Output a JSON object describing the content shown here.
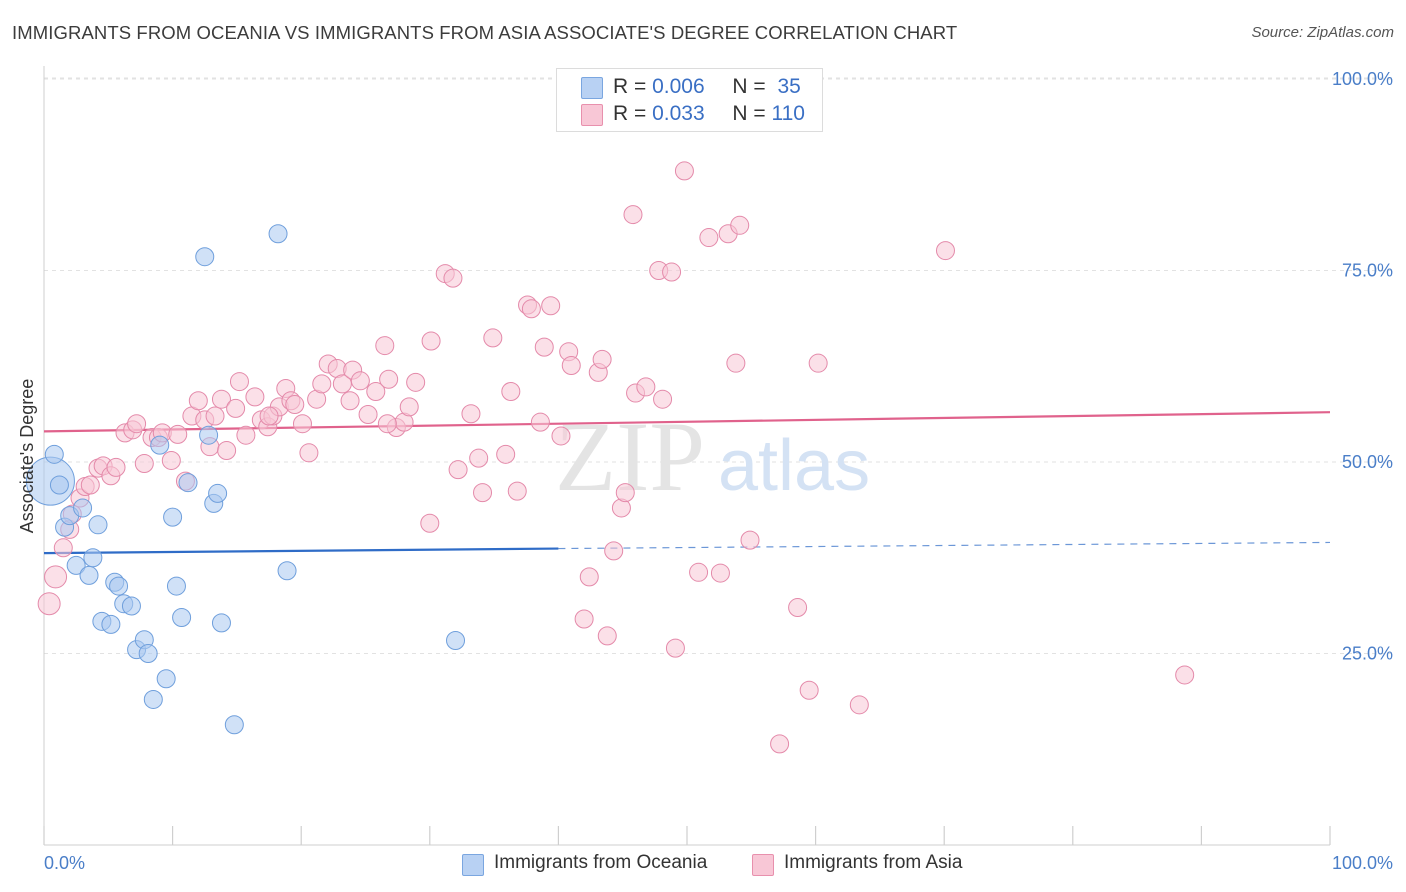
{
  "title": "IMMIGRANTS FROM OCEANIA VS IMMIGRANTS FROM ASIA ASSOCIATE'S DEGREE CORRELATION CHART",
  "source": "Source: ZipAtlas.com",
  "watermark": {
    "zip": "ZIP",
    "atlas": "atlas"
  },
  "legend": {
    "rows": [
      {
        "r_label": "R = ",
        "r_value": "0.006",
        "n_label": "N = ",
        "n_value": "35",
        "color": "#b8d1f3",
        "border": "#7aa6e0"
      },
      {
        "r_label": "R = ",
        "r_value": "0.033",
        "n_label": "N = ",
        "n_value": "110",
        "color": "#f8c7d6",
        "border": "#e890ad"
      }
    ]
  },
  "chart_data": {
    "type": "scatter",
    "xlabel": "",
    "ylabel": "Associate's Degree",
    "xlim": [
      0,
      100
    ],
    "ylim": [
      0,
      100
    ],
    "x_tick_labels": [
      "0.0%",
      "100.0%"
    ],
    "y_tick_labels": [
      "100.0%",
      "75.0%",
      "50.0%",
      "25.0%"
    ],
    "y_ticks": [
      100,
      75,
      50,
      25
    ],
    "grid": true,
    "legend_position": "top-center",
    "series": [
      {
        "name": "Immigrants from Oceania",
        "color": "#a9c8f0",
        "edge": "#6f9fdc",
        "trend": {
          "x0": 0,
          "y0": 38.1,
          "x1": 40,
          "y1": 38.7,
          "dashed_to_x": 100,
          "dashed_to_y": 39.5,
          "color": "#2f6cc7"
        },
        "points": [
          [
            0.5,
            47.5
          ],
          [
            0.8,
            51
          ],
          [
            1.2,
            47
          ],
          [
            1.6,
            41.5
          ],
          [
            2,
            43
          ],
          [
            2.5,
            36.5
          ],
          [
            3,
            44
          ],
          [
            3.5,
            35.2
          ],
          [
            3.8,
            37.5
          ],
          [
            4.2,
            41.8
          ],
          [
            4.5,
            29.2
          ],
          [
            5.2,
            28.8
          ],
          [
            5.5,
            34.3
          ],
          [
            5.8,
            33.8
          ],
          [
            6.2,
            31.5
          ],
          [
            6.8,
            31.2
          ],
          [
            7.2,
            25.5
          ],
          [
            7.8,
            26.8
          ],
          [
            8.1,
            25
          ],
          [
            8.5,
            19
          ],
          [
            9,
            52.2
          ],
          [
            9.5,
            21.7
          ],
          [
            10,
            42.8
          ],
          [
            10.3,
            33.8
          ],
          [
            10.7,
            29.7
          ],
          [
            11.2,
            47.3
          ],
          [
            12.5,
            76.8
          ],
          [
            12.8,
            53.5
          ],
          [
            13.2,
            44.6
          ],
          [
            13.5,
            45.9
          ],
          [
            13.8,
            29
          ],
          [
            14.8,
            15.7
          ],
          [
            18.2,
            79.8
          ],
          [
            18.9,
            35.8
          ],
          [
            32,
            26.7
          ]
        ]
      },
      {
        "name": "Immigrants from Asia",
        "color": "#f8c7d6",
        "edge": "#e48aaa",
        "trend": {
          "x0": 0,
          "y0": 54,
          "x1": 100,
          "y1": 56.5,
          "color": "#e0628c"
        },
        "points": [
          [
            0.4,
            31.5
          ],
          [
            0.9,
            35
          ],
          [
            1.5,
            38.8
          ],
          [
            2,
            41.2
          ],
          [
            2.2,
            43.2
          ],
          [
            2.8,
            45.3
          ],
          [
            3.2,
            46.8
          ],
          [
            3.6,
            47
          ],
          [
            4.2,
            49.2
          ],
          [
            4.6,
            49.5
          ],
          [
            5.2,
            48.2
          ],
          [
            5.6,
            49.3
          ],
          [
            6.3,
            53.8
          ],
          [
            6.9,
            54.2
          ],
          [
            7.2,
            55
          ],
          [
            7.8,
            49.8
          ],
          [
            8.4,
            53.2
          ],
          [
            8.9,
            53.2
          ],
          [
            9.2,
            53.8
          ],
          [
            9.9,
            50.2
          ],
          [
            10.4,
            53.6
          ],
          [
            11,
            47.5
          ],
          [
            11.5,
            56
          ],
          [
            12,
            58
          ],
          [
            12.5,
            55.5
          ],
          [
            12.9,
            52
          ],
          [
            13.3,
            56
          ],
          [
            13.8,
            58.2
          ],
          [
            14.2,
            51.5
          ],
          [
            14.9,
            57
          ],
          [
            15.2,
            60.5
          ],
          [
            15.7,
            53.5
          ],
          [
            16.4,
            58.5
          ],
          [
            16.9,
            55.5
          ],
          [
            17.4,
            54.6
          ],
          [
            17.8,
            56
          ],
          [
            18.3,
            57.2
          ],
          [
            18.8,
            59.6
          ],
          [
            19.2,
            58
          ],
          [
            19.5,
            57.5
          ],
          [
            20.1,
            55
          ],
          [
            20.6,
            51.2
          ],
          [
            21.2,
            58.2
          ],
          [
            21.6,
            60.2
          ],
          [
            22.1,
            62.8
          ],
          [
            22.8,
            62.2
          ],
          [
            23.2,
            60.2
          ],
          [
            23.8,
            58
          ],
          [
            24,
            62
          ],
          [
            24.6,
            60.6
          ],
          [
            25.2,
            56.2
          ],
          [
            25.8,
            59.2
          ],
          [
            26.5,
            65.2
          ],
          [
            26.8,
            60.8
          ],
          [
            27.4,
            54.5
          ],
          [
            28,
            55.2
          ],
          [
            28.4,
            57.2
          ],
          [
            28.9,
            60.4
          ],
          [
            30.1,
            65.8
          ],
          [
            31.2,
            74.6
          ],
          [
            31.8,
            74
          ],
          [
            32.2,
            49
          ],
          [
            33.2,
            56.3
          ],
          [
            33.8,
            50.5
          ],
          [
            34.1,
            46
          ],
          [
            34.9,
            66.2
          ],
          [
            35.9,
            51
          ],
          [
            36.3,
            59.2
          ],
          [
            36.8,
            46.2
          ],
          [
            37.6,
            70.5
          ],
          [
            37.9,
            70
          ],
          [
            38.6,
            55.2
          ],
          [
            38.9,
            65
          ],
          [
            39.4,
            70.4
          ],
          [
            40.2,
            53.4
          ],
          [
            40.8,
            64.4
          ],
          [
            41,
            62.6
          ],
          [
            42.4,
            35
          ],
          [
            43.1,
            61.7
          ],
          [
            43.4,
            63.4
          ],
          [
            43.8,
            27.3
          ],
          [
            44.3,
            38.4
          ],
          [
            44.9,
            44
          ],
          [
            45.2,
            46
          ],
          [
            45.8,
            82.3
          ],
          [
            46,
            59
          ],
          [
            46.8,
            59.8
          ],
          [
            47.8,
            75
          ],
          [
            48.1,
            58.2
          ],
          [
            48.8,
            74.8
          ],
          [
            49.1,
            25.7
          ],
          [
            49.8,
            88
          ],
          [
            50.9,
            35.6
          ],
          [
            51.7,
            79.3
          ],
          [
            52.6,
            35.5
          ],
          [
            53.2,
            79.8
          ],
          [
            53.8,
            62.9
          ],
          [
            54.1,
            80.9
          ],
          [
            54.9,
            39.8
          ],
          [
            57.2,
            13.2
          ],
          [
            58.6,
            31
          ],
          [
            59.5,
            20.2
          ],
          [
            60.2,
            62.9
          ],
          [
            63.4,
            18.3
          ],
          [
            70.1,
            77.6
          ],
          [
            88.7,
            22.2
          ],
          [
            30,
            42
          ],
          [
            26.7,
            55
          ],
          [
            42,
            29.5
          ],
          [
            17.5,
            56
          ]
        ]
      }
    ]
  },
  "bottom_legend": [
    {
      "label": "Immigrants from Oceania",
      "color": "#b8d1f3",
      "border": "#7aa6e0"
    },
    {
      "label": "Immigrants from Asia",
      "color": "#f8c7d6",
      "border": "#e890ad"
    }
  ]
}
